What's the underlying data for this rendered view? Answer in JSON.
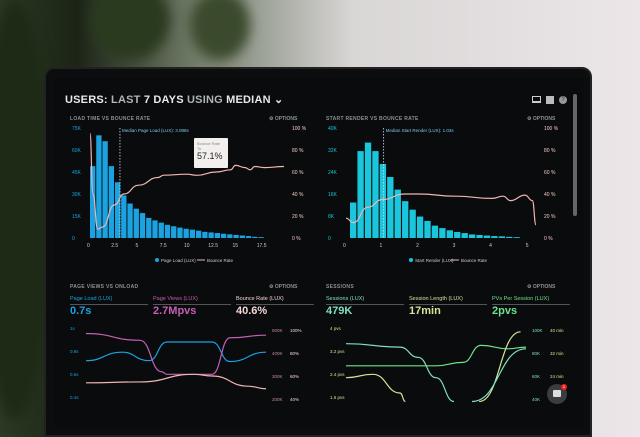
{
  "header": {
    "prefix": "USERS:",
    "last": "LAST",
    "days": "7 DAYS",
    "using": "USING",
    "mode": "MEDIAN",
    "chevron": "chevron-down-icon",
    "icons": [
      "monitor-icon",
      "chart-icon",
      "help-icon"
    ]
  },
  "colors": {
    "page_load": "#1aa3e0",
    "start_render": "#19c6dc",
    "bounce": "#f0b5b5",
    "page_views": "#c45fb5",
    "sessions": "#7fe0c0",
    "session_length": "#d8e29a",
    "pvs": "#6fe08f"
  },
  "options_label": "OPTIONS",
  "panel1": {
    "title": "LOAD TIME VS BOUNCE RATE",
    "median_label": "Median Page Load (LUX): 3.088s",
    "tooltip": {
      "title": "Bounce Rate",
      "sub": "To",
      "value": "57.1%"
    },
    "y_left": [
      "75K",
      "60K",
      "45K",
      "30K",
      "15K",
      "0"
    ],
    "y_right": [
      "100 %",
      "80 %",
      "60 %",
      "40 %",
      "20 %",
      "0 %"
    ],
    "x_ticks": [
      "0",
      "2.5",
      "5",
      "7.5",
      "10",
      "12.5",
      "15",
      "17.5"
    ],
    "legend": [
      "Page Load (LUX)",
      "Bounce Rate"
    ]
  },
  "panel2": {
    "title": "START RENDER VS BOUNCE RATE",
    "median_label": "Median Start Render (LUX): 1.03s",
    "y_left": [
      "40K",
      "32K",
      "24K",
      "16K",
      "8K",
      "0"
    ],
    "y_right": [
      "100 %",
      "80 %",
      "60 %",
      "40 %",
      "20 %",
      "0 %"
    ],
    "x_ticks": [
      "0",
      "1",
      "2",
      "3",
      "4",
      "5"
    ],
    "legend": [
      "Start Render (LUX)",
      "Bounce Rate"
    ]
  },
  "panel3": {
    "title": "PAGE VIEWS VS ONLOAD",
    "metrics": [
      {
        "label": "Page Load (LUX)",
        "value": "0.7s"
      },
      {
        "label": "Page Views (LUX)",
        "value": "2.7Mpvs"
      },
      {
        "label": "Bounce Rate (LUX)",
        "value": "40.6%"
      }
    ],
    "y_left": [
      "1s",
      "0.8s",
      "0.6s",
      "0.4s"
    ],
    "y_right_a": [
      "500K",
      "400K",
      "300K",
      "200K"
    ],
    "y_right_b": [
      "100%",
      "80%",
      "60%",
      "40%"
    ]
  },
  "panel4": {
    "title": "SESSIONS",
    "metrics": [
      {
        "label": "Sessions (LUX)",
        "value": "479K"
      },
      {
        "label": "Session Length (LUX)",
        "value": "17min"
      },
      {
        "label": "PVs Per Session (LUX)",
        "value": "2pvs"
      }
    ],
    "y_left": [
      "4 pvs",
      "3.2 pvs",
      "2.4 pvs",
      "1.6 pvs"
    ],
    "y_right_a": [
      "100K",
      "80K",
      "60K",
      "40K"
    ],
    "y_right_b": [
      "40 min",
      "32 min",
      "24 min"
    ]
  },
  "chat": {
    "badge": "1"
  },
  "chart_data": [
    {
      "type": "bar",
      "title": "LOAD TIME VS BOUNCE RATE",
      "x_range": [
        0,
        20
      ],
      "ylim": [
        0,
        75
      ],
      "ylim_right": [
        0,
        100
      ],
      "median_x": 3.088,
      "series": [
        {
          "name": "Page Load (LUX)",
          "unit": "K",
          "values": [
            49,
            70,
            66,
            49,
            38,
            29,
            23.5,
            20,
            17,
            13.7,
            12,
            10.5,
            9,
            8,
            7.1,
            6.3,
            5.7,
            5,
            4.2,
            3.8,
            3.4,
            2.9,
            2.5,
            2.1,
            1.7,
            1.3,
            0.8,
            0.6
          ]
        },
        {
          "name": "Bounce Rate",
          "unit": "%",
          "points": [
            [
              0,
              95
            ],
            [
              0.3,
              40
            ],
            [
              0.8,
              8
            ],
            [
              1.3,
              10
            ],
            [
              2.5,
              30
            ],
            [
              3.5,
              40
            ],
            [
              5,
              48
            ],
            [
              7,
              55
            ],
            [
              7.6,
              57.1
            ],
            [
              10,
              58
            ],
            [
              11,
              57
            ],
            [
              13,
              60
            ],
            [
              14.5,
              62
            ],
            [
              15,
              66
            ],
            [
              16,
              64
            ],
            [
              16.5,
              62
            ],
            [
              17,
              65
            ],
            [
              18,
              64
            ],
            [
              20,
              65
            ]
          ]
        }
      ]
    },
    {
      "type": "bar",
      "title": "START RENDER VS BOUNCE RATE",
      "x_range": [
        0,
        5.2
      ],
      "ylim": [
        0,
        40
      ],
      "ylim_right": [
        0,
        100
      ],
      "median_x": 1.03,
      "series": [
        {
          "name": "Start Render (LUX)",
          "unit": "K",
          "values": [
            12.9,
            31.6,
            34.7,
            31.6,
            26.9,
            22.2,
            17.6,
            13.4,
            10.3,
            7.8,
            6.2,
            4.5,
            3.6,
            2.8,
            2.2,
            1.8,
            1.3,
            1.1,
            0.9,
            0.7,
            0.6,
            0.4,
            0.3
          ]
        },
        {
          "name": "Bounce Rate",
          "unit": "%",
          "points": [
            [
              0,
              18
            ],
            [
              0.2,
              14
            ],
            [
              0.6,
              28
            ],
            [
              1,
              35
            ],
            [
              1.6,
              40
            ],
            [
              2,
              40
            ],
            [
              3,
              38
            ],
            [
              4,
              36
            ],
            [
              4.3,
              38
            ],
            [
              4.5,
              34
            ],
            [
              4.9,
              39
            ],
            [
              5.1,
              34
            ],
            [
              5.2,
              12
            ]
          ]
        }
      ]
    },
    {
      "type": "line",
      "title": "PAGE VIEWS VS ONLOAD",
      "x_range": [
        0,
        10
      ],
      "ylim": [
        0,
        1
      ],
      "series": [
        {
          "name": "Page Load (LUX)",
          "points": [
            [
              0,
              0.58
            ],
            [
              2,
              0.68
            ],
            [
              3.5,
              0.58
            ],
            [
              4.5,
              0.8
            ],
            [
              7,
              0.8
            ],
            [
              8,
              0.57
            ],
            [
              10,
              0.68
            ]
          ]
        },
        {
          "name": "Page Views (LUX)",
          "points": [
            [
              0,
              0.9
            ],
            [
              3,
              0.82
            ],
            [
              4.2,
              0.45
            ],
            [
              4.5,
              0.42
            ],
            [
              7,
              0.42
            ],
            [
              8,
              0.85
            ],
            [
              10,
              0.88
            ]
          ]
        },
        {
          "name": "Bounce Rate (LUX)",
          "points": [
            [
              0,
              0.32
            ],
            [
              3,
              0.33
            ],
            [
              6,
              0.42
            ],
            [
              7,
              0.4
            ],
            [
              9,
              0.28
            ],
            [
              10,
              0.25
            ]
          ]
        }
      ]
    },
    {
      "type": "line",
      "title": "SESSIONS",
      "x_range": [
        0,
        10
      ],
      "ylim": [
        0,
        1
      ],
      "series": [
        {
          "name": "Sessions (LUX)",
          "points": [
            [
              0,
              0.78
            ],
            [
              3,
              0.74
            ],
            [
              4,
              0.62
            ],
            [
              5,
              0.38
            ],
            [
              6,
              0.1
            ]
          ]
        },
        {
          "name": "Session Length (LUX)",
          "points": [
            [
              0,
              0.38
            ],
            [
              1.5,
              0.42
            ],
            [
              3,
              0.2
            ],
            [
              3.3,
              0.1
            ]
          ]
        },
        {
          "name": "PVs Per Session (LUX)",
          "points": [
            [
              0,
              0.52
            ],
            [
              5,
              0.52
            ],
            [
              6.5,
              0.56
            ],
            [
              7.5,
              0.76
            ],
            [
              9,
              0.72
            ],
            [
              10,
              0.74
            ]
          ]
        },
        {
          "name": "Session Length trend",
          "points": [
            [
              7.4,
              0.1
            ],
            [
              9.7,
              0.92
            ]
          ]
        },
        {
          "name": "PVs trend",
          "points": [
            [
              7,
              0.1
            ],
            [
              10,
              0.72
            ]
          ]
        }
      ]
    }
  ]
}
